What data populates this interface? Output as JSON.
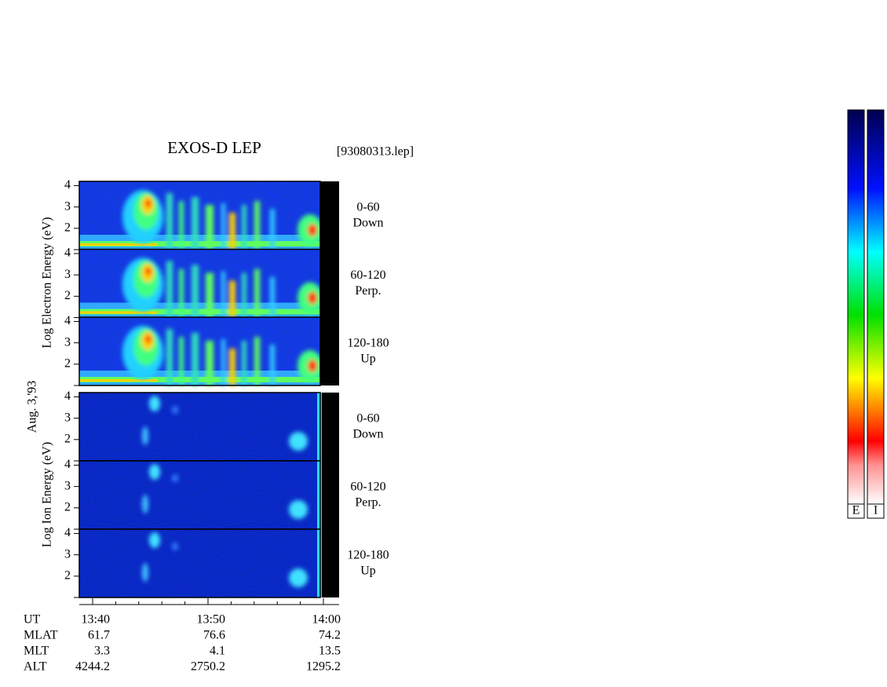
{
  "title": "EXOS-D LEP",
  "file": "[93080313.lep]",
  "date": "Aug. 3,'93",
  "electron": {
    "axis_label": "Log  Electron  Energy (eV)",
    "panels": [
      {
        "range": "0-60",
        "direction": "Down",
        "ylim": [
          1,
          4.2
        ],
        "yticks": [
          2,
          3,
          4
        ]
      },
      {
        "range": "60-120",
        "direction": "Perp.",
        "ylim": [
          1,
          4.2
        ],
        "yticks": [
          2,
          3,
          4
        ]
      },
      {
        "range": "120-180",
        "direction": "Up",
        "ylim": [
          1,
          4.2
        ],
        "yticks": [
          2,
          3,
          4
        ]
      }
    ]
  },
  "ion": {
    "axis_label": "Log  Ion  Energy (eV)",
    "panels": [
      {
        "range": "0-60",
        "direction": "Down",
        "ylim": [
          1,
          4.2
        ],
        "yticks": [
          2,
          3,
          4
        ]
      },
      {
        "range": "60-120",
        "direction": "Perp.",
        "ylim": [
          1,
          4.2
        ],
        "yticks": [
          2,
          3,
          4
        ]
      },
      {
        "range": "120-180",
        "direction": "Up",
        "ylim": [
          1,
          4.2
        ],
        "yticks": [
          2,
          3,
          4
        ]
      }
    ]
  },
  "time_axis": {
    "label": "UT",
    "ticks": [
      "13:40",
      "13:50",
      "14:00"
    ]
  },
  "ephemeris": [
    {
      "label": "MLAT",
      "values": [
        61.7,
        76.6,
        74.2
      ]
    },
    {
      "label": "MLT",
      "values": [
        3.3,
        4.1,
        13.5
      ]
    },
    {
      "label": "ALT",
      "values": [
        4244.2,
        2750.2,
        1295.2
      ]
    }
  ],
  "colorbars": [
    "E",
    "I"
  ]
}
